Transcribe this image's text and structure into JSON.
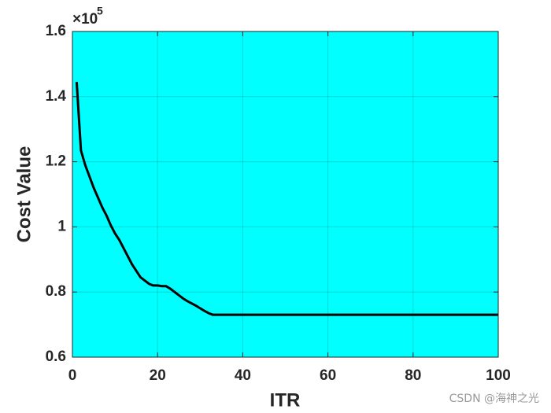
{
  "chart_data": {
    "type": "line",
    "xlabel": "ITR",
    "ylabel": "Cost Value",
    "y_multiplier_base": "×10",
    "y_multiplier_exponent": "5",
    "watermark": "CSDN @海神之光",
    "x": [
      1,
      2,
      3,
      4,
      5,
      6,
      7,
      8,
      9,
      10,
      11,
      12,
      13,
      14,
      15,
      16,
      17,
      18,
      19,
      20,
      21,
      22,
      23,
      24,
      25,
      26,
      27,
      28,
      29,
      30,
      31,
      32,
      33,
      34,
      35,
      36,
      37,
      38,
      39,
      40,
      41,
      42,
      43,
      44,
      45,
      46,
      47,
      48,
      49,
      50,
      51,
      52,
      53,
      54,
      55,
      56,
      57,
      58,
      59,
      60,
      61,
      62,
      63,
      64,
      65,
      66,
      67,
      68,
      69,
      70,
      71,
      72,
      73,
      74,
      75,
      76,
      77,
      78,
      79,
      80,
      81,
      82,
      83,
      84,
      85,
      86,
      87,
      88,
      89,
      90,
      91,
      92,
      93,
      94,
      95,
      96,
      97,
      98,
      99,
      100
    ],
    "values": [
      1.445,
      1.235,
      1.19,
      1.155,
      1.12,
      1.09,
      1.06,
      1.035,
      1.005,
      0.98,
      0.96,
      0.935,
      0.91,
      0.885,
      0.865,
      0.845,
      0.835,
      0.825,
      0.82,
      0.82,
      0.818,
      0.818,
      0.81,
      0.8,
      0.79,
      0.78,
      0.772,
      0.765,
      0.758,
      0.75,
      0.742,
      0.735,
      0.73,
      0.73,
      0.73,
      0.73,
      0.73,
      0.73,
      0.73,
      0.73,
      0.73,
      0.73,
      0.73,
      0.73,
      0.73,
      0.73,
      0.73,
      0.73,
      0.73,
      0.73,
      0.73,
      0.73,
      0.73,
      0.73,
      0.73,
      0.73,
      0.73,
      0.73,
      0.73,
      0.73,
      0.73,
      0.73,
      0.73,
      0.73,
      0.73,
      0.73,
      0.73,
      0.73,
      0.73,
      0.73,
      0.73,
      0.73,
      0.73,
      0.73,
      0.73,
      0.73,
      0.73,
      0.73,
      0.73,
      0.73,
      0.73,
      0.73,
      0.73,
      0.73,
      0.73,
      0.73,
      0.73,
      0.73,
      0.73,
      0.73,
      0.73,
      0.73,
      0.73,
      0.73,
      0.73,
      0.73,
      0.73,
      0.73,
      0.73,
      0.73
    ],
    "color": "#000000",
    "background": "#00ffff",
    "xlim": [
      0,
      100
    ],
    "xticks": [
      0,
      20,
      40,
      60,
      80,
      100
    ],
    "ylim": [
      0.6,
      1.6
    ],
    "yticks": [
      0.6,
      0.8,
      1,
      1.2,
      1.4,
      1.6
    ],
    "grid": true
  }
}
